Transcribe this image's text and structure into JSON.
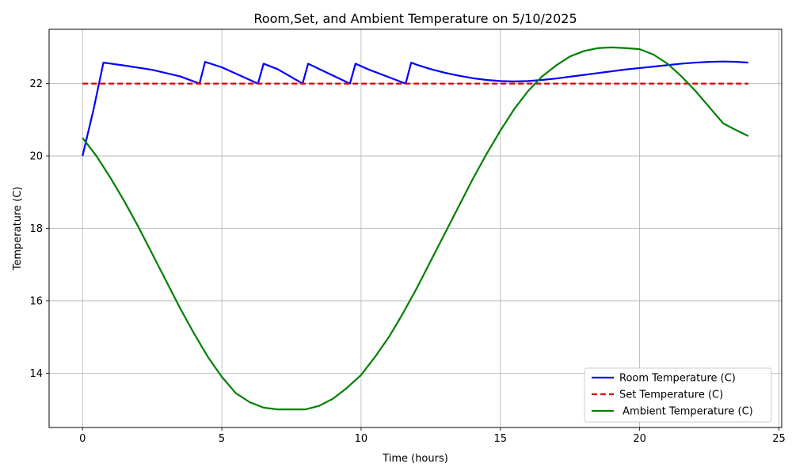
{
  "chart_data": {
    "type": "line",
    "title": "Room,Set, and Ambient Temperature on 5/10/2025",
    "xlabel": "Time (hours)",
    "ylabel": "Temperature (C)",
    "xlim": [
      -1.2,
      25.1
    ],
    "ylim": [
      12.5,
      23.5
    ],
    "xticks": [
      0,
      5,
      10,
      15,
      20,
      25
    ],
    "yticks": [
      14,
      16,
      18,
      20,
      22
    ],
    "grid": true,
    "legend_position": "lower-right",
    "series": [
      {
        "name": "Room Temperature (C)",
        "color": "#0000ff",
        "style": "solid",
        "x": [
          0,
          0.4,
          0.75,
          1.5,
          2.5,
          3.5,
          4.2,
          4.4,
          5.0,
          6.3,
          6.5,
          7.0,
          7.9,
          8.1,
          8.5,
          9.6,
          9.8,
          10.3,
          11.6,
          11.8,
          12.0,
          12.5,
          13.0,
          13.5,
          14.0,
          14.5,
          15.0,
          15.5,
          16.0,
          16.5,
          17.0,
          17.5,
          18.0,
          18.5,
          19.0,
          19.5,
          20.0,
          20.5,
          21.0,
          21.5,
          22.0,
          22.5,
          23.0,
          23.5,
          23.9
        ],
        "y": [
          20.0,
          21.3,
          22.58,
          22.5,
          22.38,
          22.2,
          22.0,
          22.6,
          22.45,
          22.0,
          22.55,
          22.4,
          22.0,
          22.55,
          22.4,
          22.0,
          22.55,
          22.38,
          22.0,
          22.58,
          22.52,
          22.4,
          22.3,
          22.22,
          22.15,
          22.1,
          22.07,
          22.06,
          22.07,
          22.1,
          22.14,
          22.19,
          22.24,
          22.29,
          22.34,
          22.39,
          22.43,
          22.47,
          22.51,
          22.55,
          22.58,
          22.6,
          22.61,
          22.6,
          22.58
        ]
      },
      {
        "name": "Set Temperature (C)",
        "color": "#e00000",
        "style": "dashed",
        "x": [
          0,
          23.9
        ],
        "y": [
          22.0,
          22.0
        ]
      },
      {
        "name": " Ambient Temperature (C)",
        "color": "#008000",
        "style": "solid",
        "x": [
          0,
          0.5,
          1,
          1.5,
          2,
          2.5,
          3,
          3.5,
          4,
          4.5,
          5,
          5.5,
          6,
          6.5,
          7,
          7.5,
          8,
          8.5,
          9,
          9.5,
          10,
          10.5,
          11,
          11.5,
          12,
          12.5,
          13,
          13.5,
          14,
          14.5,
          15,
          15.5,
          16,
          16.5,
          17,
          17.5,
          18,
          18.5,
          19,
          19.5,
          20,
          20.5,
          21,
          21.5,
          22,
          22.5,
          23,
          23.5,
          23.9
        ],
        "y": [
          20.5,
          20.0,
          19.4,
          18.75,
          18.05,
          17.3,
          16.55,
          15.8,
          15.1,
          14.45,
          13.9,
          13.45,
          13.2,
          13.05,
          13.0,
          13.0,
          13.0,
          13.1,
          13.3,
          13.6,
          13.95,
          14.45,
          15.0,
          15.65,
          16.35,
          17.1,
          17.85,
          18.6,
          19.35,
          20.05,
          20.7,
          21.3,
          21.8,
          22.2,
          22.5,
          22.75,
          22.9,
          22.98,
          23.0,
          22.98,
          22.95,
          22.8,
          22.55,
          22.2,
          21.8,
          21.35,
          20.9,
          20.7,
          20.55
        ]
      }
    ]
  }
}
